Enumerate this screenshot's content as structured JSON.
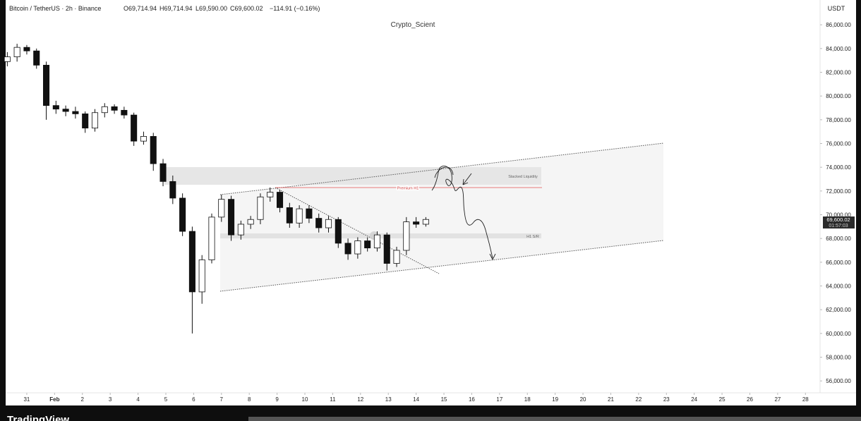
{
  "header": {
    "symbol": "Bitcoin / TetherUS · 2h · Binance",
    "open": "O69,714.94",
    "high": "H69,714.94",
    "low": "L69,590.00",
    "close": "C69,600.02",
    "change": "−114.91 (−0.16%)",
    "author": "Crypto_Scient",
    "currency": "USDT",
    "price_label": "69,600.02",
    "countdown": "01:57:03",
    "brand": "TradingView"
  },
  "annotations": {
    "zone_top": "Stacked Liquidity",
    "red_line": "Premium H1",
    "zone_mid": "H1 S/R"
  },
  "chart_data": {
    "type": "candlestick",
    "up_color": "#ffffff",
    "down_color": "#111111",
    "x": [
      -0.7,
      -0.35,
      0,
      0.35,
      0.7,
      1.05,
      1.4,
      1.75,
      2.1,
      2.45,
      2.8,
      3.15,
      3.5,
      3.85,
      4.2,
      4.55,
      4.9,
      5.25,
      5.6,
      5.95,
      6.3,
      6.65,
      7,
      7.35,
      7.7,
      8.05,
      8.4,
      8.75,
      9.1,
      9.45,
      9.8,
      10.15,
      10.5,
      10.85,
      11.2,
      11.55,
      11.9,
      12.25,
      12.6,
      12.95,
      13.3,
      13.65,
      14,
      14.35
    ],
    "open": [
      82900,
      83300,
      84100,
      83800,
      82600,
      79200,
      78900,
      78700,
      78500,
      77300,
      78600,
      79100,
      78800,
      78400,
      76200,
      76600,
      74300,
      72800,
      71400,
      68600,
      63500,
      66200,
      69800,
      71300,
      68300,
      69200,
      69600,
      71500,
      71900,
      70600,
      69300,
      70500,
      69700,
      68900,
      69600,
      67600,
      66700,
      67800,
      67200,
      68300,
      65900,
      67000,
      69400,
      69200
    ],
    "high": [
      83700,
      84400,
      84300,
      84000,
      82900,
      79600,
      79200,
      79100,
      78700,
      78900,
      79400,
      79300,
      79100,
      78600,
      77000,
      76900,
      74700,
      73300,
      71800,
      69000,
      66600,
      70100,
      71700,
      71600,
      69500,
      69900,
      71800,
      72300,
      72100,
      71000,
      70800,
      70800,
      70100,
      69900,
      69800,
      68000,
      68100,
      68100,
      68600,
      68500,
      67300,
      69800,
      69800,
      69800
    ],
    "low": [
      82500,
      82900,
      83500,
      82300,
      78000,
      78500,
      78300,
      78100,
      76900,
      77000,
      78200,
      78500,
      78100,
      75800,
      75900,
      73700,
      72400,
      70900,
      68200,
      60000,
      62500,
      65900,
      69400,
      67800,
      67900,
      68800,
      69200,
      71100,
      70200,
      68900,
      68900,
      69300,
      68500,
      68500,
      67200,
      66200,
      66300,
      66900,
      66900,
      65300,
      65600,
      66600,
      68900,
      69000
    ],
    "close": [
      83300,
      84100,
      83800,
      82600,
      79200,
      78900,
      78700,
      78500,
      77300,
      78600,
      79100,
      78800,
      78400,
      76200,
      76600,
      74300,
      72800,
      71400,
      68600,
      63500,
      66200,
      69800,
      71300,
      68300,
      69200,
      69600,
      71500,
      71900,
      70600,
      69300,
      70500,
      69700,
      68900,
      69600,
      67600,
      66700,
      67800,
      67200,
      68300,
      65900,
      67000,
      69400,
      69200,
      69600
    ],
    "xlim": [
      -0.76,
      28.5
    ],
    "xticks": [
      {
        "value": 0,
        "label": "31"
      },
      {
        "value": 1,
        "label": "Feb"
      },
      2,
      3,
      4,
      5,
      6,
      7,
      8,
      9,
      10,
      11,
      12,
      13,
      14,
      15,
      16,
      17,
      18,
      19,
      20,
      21,
      22,
      23,
      24,
      25,
      26,
      27,
      28
    ],
    "ylim": [
      55000,
      88000
    ],
    "yticks": [
      {
        "value": 56000,
        "label": "56,000.00"
      },
      {
        "value": 58000,
        "label": "58,000.00"
      },
      {
        "value": 60000,
        "label": "60,000.00"
      },
      {
        "value": 62000,
        "label": "62,000.00"
      },
      {
        "value": 64000,
        "label": "64,000.00"
      },
      {
        "value": 66000,
        "label": "66,000.00"
      },
      {
        "value": 68000,
        "label": "68,000.00"
      },
      {
        "value": 70000,
        "label": "70,000.00"
      },
      {
        "value": 72000,
        "label": "72,000.00"
      },
      {
        "value": 74000,
        "label": "74,000.00"
      },
      {
        "value": 76000,
        "label": "76,000.00"
      },
      {
        "value": 78000,
        "label": "78,000.00"
      },
      {
        "value": 80000,
        "label": "80,000.00"
      },
      {
        "value": 82000,
        "label": "82,000.00"
      },
      {
        "value": 84000,
        "label": "84,000.00"
      },
      {
        "value": 86000,
        "label": "86,000.00"
      }
    ],
    "grid": false
  }
}
